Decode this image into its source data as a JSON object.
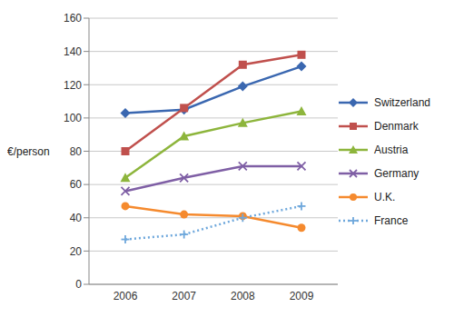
{
  "chart_data": {
    "type": "line",
    "y_label": "€/person",
    "categories": [
      "2006",
      "2007",
      "2008",
      "2009"
    ],
    "series": [
      {
        "name": "Switzerland",
        "color": "#3a67b0",
        "marker": "diamond",
        "line_style": "solid",
        "values": [
          103,
          105,
          119,
          131
        ]
      },
      {
        "name": "Denmark",
        "color": "#c0504d",
        "marker": "square",
        "line_style": "solid",
        "values": [
          80,
          106,
          132,
          138
        ]
      },
      {
        "name": "Austria",
        "color": "#8db53c",
        "marker": "triangle",
        "line_style": "solid",
        "values": [
          64,
          89,
          97,
          104
        ]
      },
      {
        "name": "Germany",
        "color": "#7f5fa5",
        "marker": "x",
        "line_style": "solid",
        "values": [
          56,
          64,
          71,
          71
        ]
      },
      {
        "name": "U.K.",
        "color": "#f58a2e",
        "marker": "circle",
        "line_style": "solid",
        "values": [
          47,
          42,
          41,
          34
        ]
      },
      {
        "name": "France",
        "color": "#6fa8dc",
        "marker": "plus",
        "line_style": "dotted",
        "values": [
          27,
          30,
          40,
          47
        ]
      }
    ],
    "ylim": [
      0,
      160
    ],
    "yticks": [
      0,
      20,
      40,
      60,
      80,
      100,
      120,
      140,
      160
    ],
    "grid": true,
    "legend": "right"
  }
}
